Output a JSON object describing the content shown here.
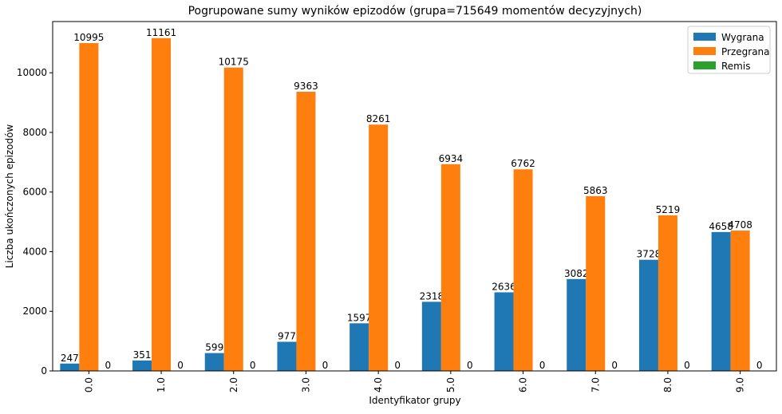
{
  "chart_data": {
    "type": "bar",
    "title": "Pogrupowane sumy wyników epizodów (grupa=715649 momentów decyzyjnych)",
    "xlabel": "Identyfikator grupy",
    "ylabel": "Liczba ukończonych epizodów",
    "categories": [
      "0.0",
      "1.0",
      "2.0",
      "3.0",
      "4.0",
      "5.0",
      "6.0",
      "7.0",
      "8.0",
      "9.0"
    ],
    "series": [
      {
        "name": "Wygrana",
        "color": "#1f77b4",
        "values": [
          247,
          351,
          599,
          977,
          1597,
          2318,
          2636,
          3082,
          3728,
          4658
        ]
      },
      {
        "name": "Przegrana",
        "color": "#ff7f0e",
        "values": [
          10995,
          11161,
          10175,
          9363,
          8261,
          6934,
          6762,
          5863,
          5219,
          4708
        ]
      },
      {
        "name": "Remis",
        "color": "#2ca02c",
        "values": [
          0,
          0,
          0,
          0,
          0,
          0,
          0,
          0,
          0,
          0
        ]
      }
    ],
    "ylim": [
      0,
      11718
    ],
    "yticks": [
      0,
      2000,
      4000,
      6000,
      8000,
      10000
    ],
    "grid": false,
    "legend_position": "top-right"
  }
}
